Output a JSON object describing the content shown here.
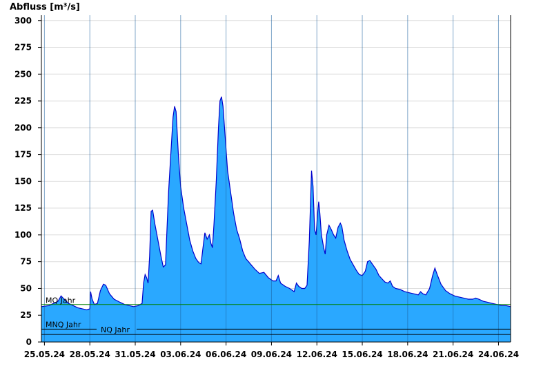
{
  "chart_data": {
    "type": "area",
    "ylabel": "Abfluss [m³/s]",
    "ylim": [
      0,
      305
    ],
    "yticks": [
      0,
      25,
      50,
      75,
      100,
      125,
      150,
      175,
      200,
      225,
      250,
      275,
      300
    ],
    "x_tick_labels": [
      "25.05.24",
      "28.05.24",
      "31.05.24",
      "03.06.24",
      "06.06.24",
      "09.06.24",
      "12.06.24",
      "15.06.24",
      "18.06.24",
      "21.06.24",
      "24.06.24"
    ],
    "x_tick_days": [
      0,
      3,
      6,
      9,
      12,
      15,
      18,
      21,
      24,
      27,
      30
    ],
    "xlim_days": [
      -0.2,
      30.8
    ],
    "grid": true,
    "colors": {
      "fill": "#2aa8ff",
      "line": "#0000cc",
      "mq": "#008000",
      "ref": "#000000",
      "grid": "#dddddd"
    },
    "series": [
      {
        "values": [
          [
            -0.2,
            33
          ],
          [
            0.3,
            34
          ],
          [
            0.6,
            36
          ],
          [
            0.9,
            38
          ],
          [
            1.1,
            43
          ],
          [
            1.3,
            40
          ],
          [
            1.6,
            36
          ],
          [
            1.9,
            34
          ],
          [
            2.2,
            32
          ],
          [
            2.5,
            31
          ],
          [
            2.8,
            30
          ],
          [
            3.0,
            31
          ],
          [
            3.05,
            47
          ],
          [
            3.15,
            40
          ],
          [
            3.3,
            35
          ],
          [
            3.5,
            36
          ],
          [
            3.7,
            48
          ],
          [
            3.9,
            54
          ],
          [
            4.05,
            53
          ],
          [
            4.3,
            45
          ],
          [
            4.6,
            40
          ],
          [
            5.0,
            37
          ],
          [
            5.3,
            35
          ],
          [
            5.6,
            34
          ],
          [
            5.9,
            33
          ],
          [
            6.2,
            34
          ],
          [
            6.45,
            36
          ],
          [
            6.55,
            55
          ],
          [
            6.65,
            63
          ],
          [
            6.75,
            60
          ],
          [
            6.85,
            55
          ],
          [
            6.95,
            80
          ],
          [
            7.05,
            122
          ],
          [
            7.15,
            123
          ],
          [
            7.3,
            110
          ],
          [
            7.5,
            95
          ],
          [
            7.7,
            80
          ],
          [
            7.85,
            70
          ],
          [
            8.0,
            72
          ],
          [
            8.05,
            90
          ],
          [
            8.2,
            140
          ],
          [
            8.35,
            175
          ],
          [
            8.5,
            210
          ],
          [
            8.6,
            220
          ],
          [
            8.7,
            215
          ],
          [
            8.85,
            175
          ],
          [
            9.0,
            145
          ],
          [
            9.2,
            125
          ],
          [
            9.4,
            110
          ],
          [
            9.6,
            95
          ],
          [
            9.8,
            85
          ],
          [
            10.0,
            78
          ],
          [
            10.2,
            74
          ],
          [
            10.35,
            73
          ],
          [
            10.45,
            85
          ],
          [
            10.6,
            102
          ],
          [
            10.75,
            96
          ],
          [
            10.9,
            100
          ],
          [
            11.0,
            92
          ],
          [
            11.1,
            88
          ],
          [
            11.2,
            110
          ],
          [
            11.35,
            150
          ],
          [
            11.5,
            200
          ],
          [
            11.6,
            225
          ],
          [
            11.7,
            229
          ],
          [
            11.8,
            220
          ],
          [
            11.95,
            190
          ],
          [
            12.1,
            160
          ],
          [
            12.3,
            140
          ],
          [
            12.5,
            120
          ],
          [
            12.7,
            105
          ],
          [
            12.9,
            96
          ],
          [
            13.1,
            85
          ],
          [
            13.3,
            78
          ],
          [
            13.6,
            73
          ],
          [
            13.9,
            68
          ],
          [
            14.2,
            64
          ],
          [
            14.5,
            65
          ],
          [
            14.8,
            60
          ],
          [
            15.1,
            57
          ],
          [
            15.3,
            57
          ],
          [
            15.45,
            62
          ],
          [
            15.6,
            55
          ],
          [
            15.9,
            52
          ],
          [
            16.2,
            50
          ],
          [
            16.5,
            47
          ],
          [
            16.65,
            55
          ],
          [
            16.8,
            52
          ],
          [
            17.0,
            50
          ],
          [
            17.2,
            50
          ],
          [
            17.35,
            53
          ],
          [
            17.5,
            95
          ],
          [
            17.6,
            140
          ],
          [
            17.65,
            160
          ],
          [
            17.75,
            145
          ],
          [
            17.85,
            105
          ],
          [
            17.95,
            100
          ],
          [
            18.05,
            120
          ],
          [
            18.12,
            131
          ],
          [
            18.2,
            120
          ],
          [
            18.3,
            100
          ],
          [
            18.45,
            88
          ],
          [
            18.55,
            82
          ],
          [
            18.65,
            100
          ],
          [
            18.8,
            109
          ],
          [
            18.95,
            105
          ],
          [
            19.1,
            100
          ],
          [
            19.25,
            97
          ],
          [
            19.4,
            107
          ],
          [
            19.55,
            111
          ],
          [
            19.65,
            108
          ],
          [
            19.8,
            95
          ],
          [
            20.0,
            85
          ],
          [
            20.2,
            77
          ],
          [
            20.4,
            72
          ],
          [
            20.6,
            67
          ],
          [
            20.8,
            63
          ],
          [
            21.0,
            62
          ],
          [
            21.2,
            66
          ],
          [
            21.35,
            75
          ],
          [
            21.5,
            76
          ],
          [
            21.7,
            72
          ],
          [
            21.9,
            68
          ],
          [
            22.1,
            62
          ],
          [
            22.3,
            59
          ],
          [
            22.5,
            56
          ],
          [
            22.7,
            55
          ],
          [
            22.85,
            57
          ],
          [
            23.0,
            52
          ],
          [
            23.2,
            50
          ],
          [
            23.5,
            49
          ],
          [
            23.8,
            47
          ],
          [
            24.1,
            46
          ],
          [
            24.4,
            45
          ],
          [
            24.7,
            44
          ],
          [
            24.85,
            47
          ],
          [
            25.0,
            45
          ],
          [
            25.2,
            44
          ],
          [
            25.45,
            50
          ],
          [
            25.65,
            62
          ],
          [
            25.8,
            69
          ],
          [
            25.95,
            63
          ],
          [
            26.2,
            54
          ],
          [
            26.5,
            48
          ],
          [
            26.8,
            45
          ],
          [
            27.1,
            43
          ],
          [
            27.4,
            42
          ],
          [
            27.7,
            41
          ],
          [
            28.0,
            40
          ],
          [
            28.3,
            40
          ],
          [
            28.5,
            41
          ],
          [
            28.7,
            40
          ],
          [
            29.0,
            38
          ],
          [
            29.3,
            37
          ],
          [
            29.6,
            36
          ],
          [
            29.9,
            35
          ],
          [
            30.2,
            34
          ],
          [
            30.5,
            34
          ],
          [
            30.8,
            33
          ]
        ]
      }
    ],
    "reference_lines": [
      {
        "label": "MQ Jahr",
        "value": 35
      },
      {
        "label": "MNQ Jahr",
        "value": 12
      },
      {
        "label": "NQ Jahr",
        "value": 7
      }
    ]
  }
}
